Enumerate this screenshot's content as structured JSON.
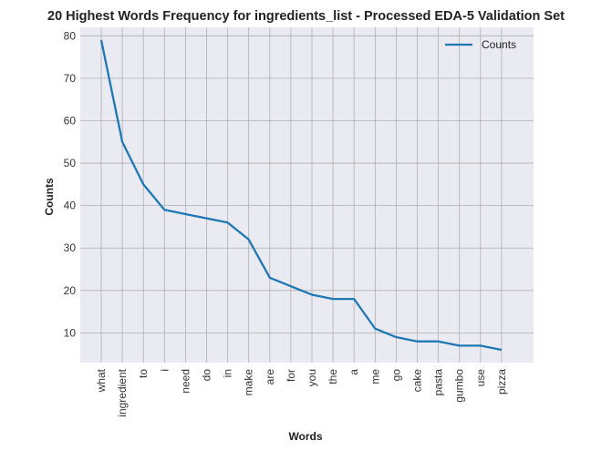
{
  "chart_data": {
    "type": "line",
    "title": "20 Highest Words Frequency for ingredients_list - Processed EDA-5 Validation Set",
    "xlabel": "Words",
    "ylabel": "Counts",
    "categories": [
      "what",
      "ingredient",
      "to",
      "i",
      "need",
      "do",
      "in",
      "make",
      "are",
      "for",
      "you",
      "the",
      "a",
      "me",
      "go",
      "cake",
      "pasta",
      "gumbo",
      "use",
      "pizza"
    ],
    "series": [
      {
        "name": "Counts",
        "values": [
          79,
          55,
          45,
          39,
          38,
          37,
          36,
          32,
          23,
          21,
          19,
          18,
          18,
          11,
          9,
          8,
          8,
          7,
          7,
          6
        ]
      }
    ],
    "ylim": [
      3,
      82
    ],
    "yticks": [
      10,
      20,
      30,
      40,
      50,
      60,
      70,
      80
    ],
    "grid": true,
    "legend": "top-right",
    "colors": {
      "line": "#1f77b4",
      "background": "#eaeaf2",
      "grid": "#b0b0b0"
    }
  }
}
